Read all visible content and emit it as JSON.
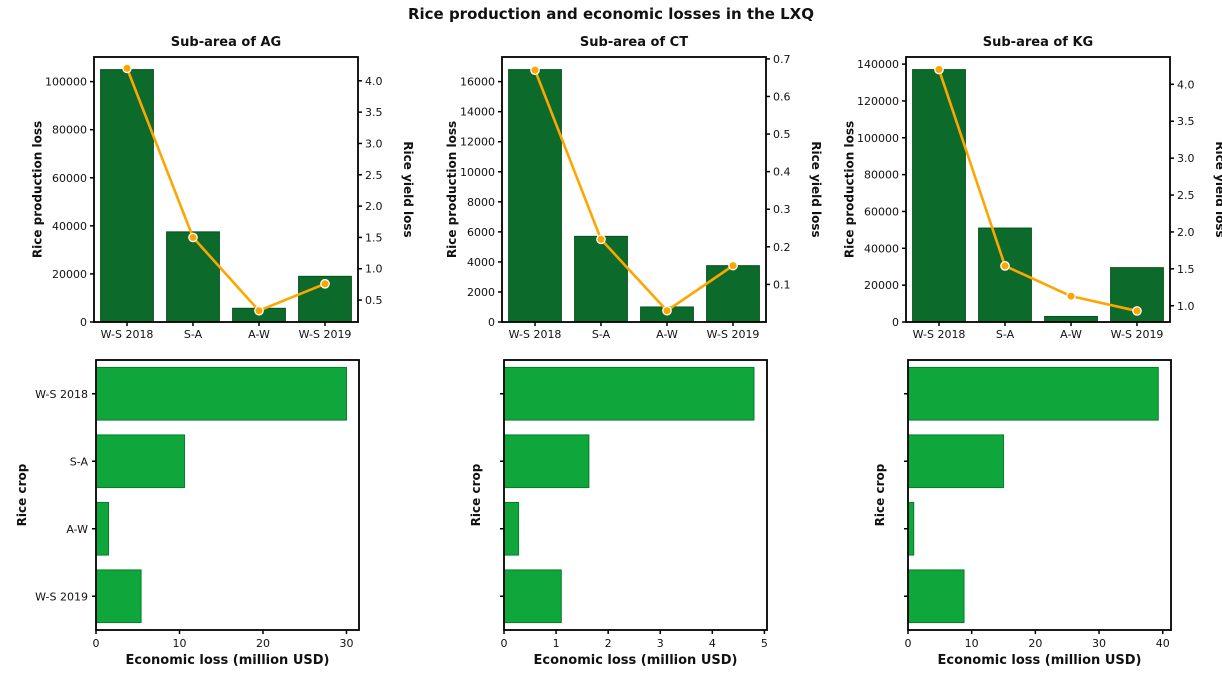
{
  "title": "Rice production and economic losses in the LXQ",
  "palette": {
    "production_bar": "#0c6b2b",
    "production_bar_edge": "#04511e",
    "economic_bar": "#0fa63c",
    "economic_bar_edge": "#067d2c",
    "yield_line": "#ffa500",
    "marker_fill": "#ffa500",
    "marker_edge": "#ffffff",
    "axis": "#000000",
    "text": "#111111",
    "plot_background": "#ffffff"
  },
  "chart_data": [
    {
      "id": "ag-production",
      "type": "bar+line-dual-axis",
      "title": "Sub-area of AG",
      "categories": [
        "W-S 2018",
        "S-A",
        "A-W",
        "W-S 2019"
      ],
      "series": [
        {
          "name": "Rice production loss",
          "type": "bar",
          "axis": "left",
          "values": [
            105000,
            37500,
            5700,
            19000
          ]
        },
        {
          "name": "Rice yield loss",
          "type": "line",
          "axis": "right",
          "values": [
            4.2,
            1.5,
            0.33,
            0.76
          ]
        }
      ],
      "left_axis": {
        "label": "Rice production loss",
        "min": 0,
        "max": 110250,
        "tick_values": [
          0,
          20000,
          40000,
          60000,
          80000,
          100000
        ],
        "tick_labels": [
          "0",
          "20000",
          "40000",
          "60000",
          "80000",
          "100000"
        ]
      },
      "right_axis": {
        "label": "Rice yield loss",
        "min": 0.15,
        "max": 4.38,
        "tick_values": [
          0.5,
          1.0,
          1.5,
          2.0,
          2.5,
          3.0,
          3.5,
          4.0
        ],
        "tick_labels": [
          "0.5",
          "1.0",
          "1.5",
          "2.0",
          "2.5",
          "3.0",
          "3.5",
          "4.0"
        ]
      },
      "show_category_labels": true
    },
    {
      "id": "ct-production",
      "type": "bar+line-dual-axis",
      "title": "Sub-area of CT",
      "categories": [
        "W-S 2018",
        "S-A",
        "A-W",
        "W-S 2019"
      ],
      "series": [
        {
          "name": "Rice production loss",
          "type": "bar",
          "axis": "left",
          "values": [
            16800,
            5700,
            1000,
            3750
          ]
        },
        {
          "name": "Rice yield loss",
          "type": "line",
          "axis": "right",
          "values": [
            0.67,
            0.22,
            0.03,
            0.15
          ]
        }
      ],
      "left_axis": {
        "label": "Rice production loss",
        "min": 0,
        "max": 17640,
        "tick_values": [
          0,
          2000,
          4000,
          6000,
          8000,
          10000,
          12000,
          14000,
          16000
        ],
        "tick_labels": [
          "0",
          "2000",
          "4000",
          "6000",
          "8000",
          "10000",
          "12000",
          "14000",
          "16000"
        ]
      },
      "right_axis": {
        "label": "Rice yield loss",
        "min": 0.0,
        "max": 0.705,
        "tick_values": [
          0.1,
          0.2,
          0.3,
          0.4,
          0.5,
          0.6,
          0.7
        ],
        "tick_labels": [
          "0.1",
          "0.2",
          "0.3",
          "0.4",
          "0.5",
          "0.6",
          "0.7"
        ]
      },
      "show_category_labels": true
    },
    {
      "id": "kg-production",
      "type": "bar+line-dual-axis",
      "title": "Sub-area of KG",
      "categories": [
        "W-S 2018",
        "S-A",
        "A-W",
        "W-S 2019"
      ],
      "series": [
        {
          "name": "Rice production loss",
          "type": "bar",
          "axis": "left",
          "values": [
            137000,
            51000,
            3000,
            29500
          ]
        },
        {
          "name": "Rice yield loss",
          "type": "line",
          "axis": "right",
          "values": [
            4.2,
            1.54,
            1.13,
            0.93
          ]
        }
      ],
      "left_axis": {
        "label": "Rice production loss",
        "min": 0,
        "max": 143850,
        "tick_values": [
          0,
          20000,
          40000,
          60000,
          80000,
          100000,
          120000,
          140000
        ],
        "tick_labels": [
          "0",
          "20000",
          "40000",
          "60000",
          "80000",
          "100000",
          "120000",
          "140000"
        ]
      },
      "right_axis": {
        "label": "Rice yield loss",
        "min": 0.78,
        "max": 4.37,
        "tick_values": [
          1.0,
          1.5,
          2.0,
          2.5,
          3.0,
          3.5,
          4.0
        ],
        "tick_labels": [
          "1.0",
          "1.5",
          "2.0",
          "2.5",
          "3.0",
          "3.5",
          "4.0"
        ]
      },
      "show_category_labels": true
    },
    {
      "id": "ag-economic",
      "type": "barh",
      "title": "",
      "categories": [
        "W-S 2018",
        "S-A",
        "A-W",
        "W-S 2019"
      ],
      "values": [
        30.0,
        10.6,
        1.5,
        5.4
      ],
      "xlabel": "Economic loss (million USD)",
      "ylabel": "Rice crop",
      "x_axis": {
        "min": 0,
        "max": 31.5,
        "tick_values": [
          0,
          10,
          20,
          30
        ],
        "tick_labels": [
          "0",
          "10",
          "20",
          "30"
        ]
      },
      "show_category_labels": true
    },
    {
      "id": "ct-economic",
      "type": "barh",
      "title": "",
      "categories": [
        "W-S 2018",
        "S-A",
        "A-W",
        "W-S 2019"
      ],
      "values": [
        4.8,
        1.63,
        0.28,
        1.1
      ],
      "xlabel": "Economic loss (million USD)",
      "ylabel": "Rice crop",
      "x_axis": {
        "min": 0,
        "max": 5.05,
        "tick_values": [
          0,
          1,
          2,
          3,
          4,
          5
        ],
        "tick_labels": [
          "0",
          "1",
          "2",
          "3",
          "4",
          "5"
        ]
      },
      "show_category_labels": false
    },
    {
      "id": "kg-economic",
      "type": "barh",
      "title": "",
      "categories": [
        "W-S 2018",
        "S-A",
        "A-W",
        "W-S 2019"
      ],
      "values": [
        39.3,
        15.0,
        0.9,
        8.8
      ],
      "xlabel": "Economic loss (million USD)",
      "ylabel": "Rice crop",
      "x_axis": {
        "min": 0,
        "max": 41.3,
        "tick_values": [
          0,
          10,
          20,
          30,
          40
        ],
        "tick_labels": [
          "0",
          "10",
          "20",
          "30",
          "40"
        ]
      },
      "show_category_labels": false
    }
  ]
}
